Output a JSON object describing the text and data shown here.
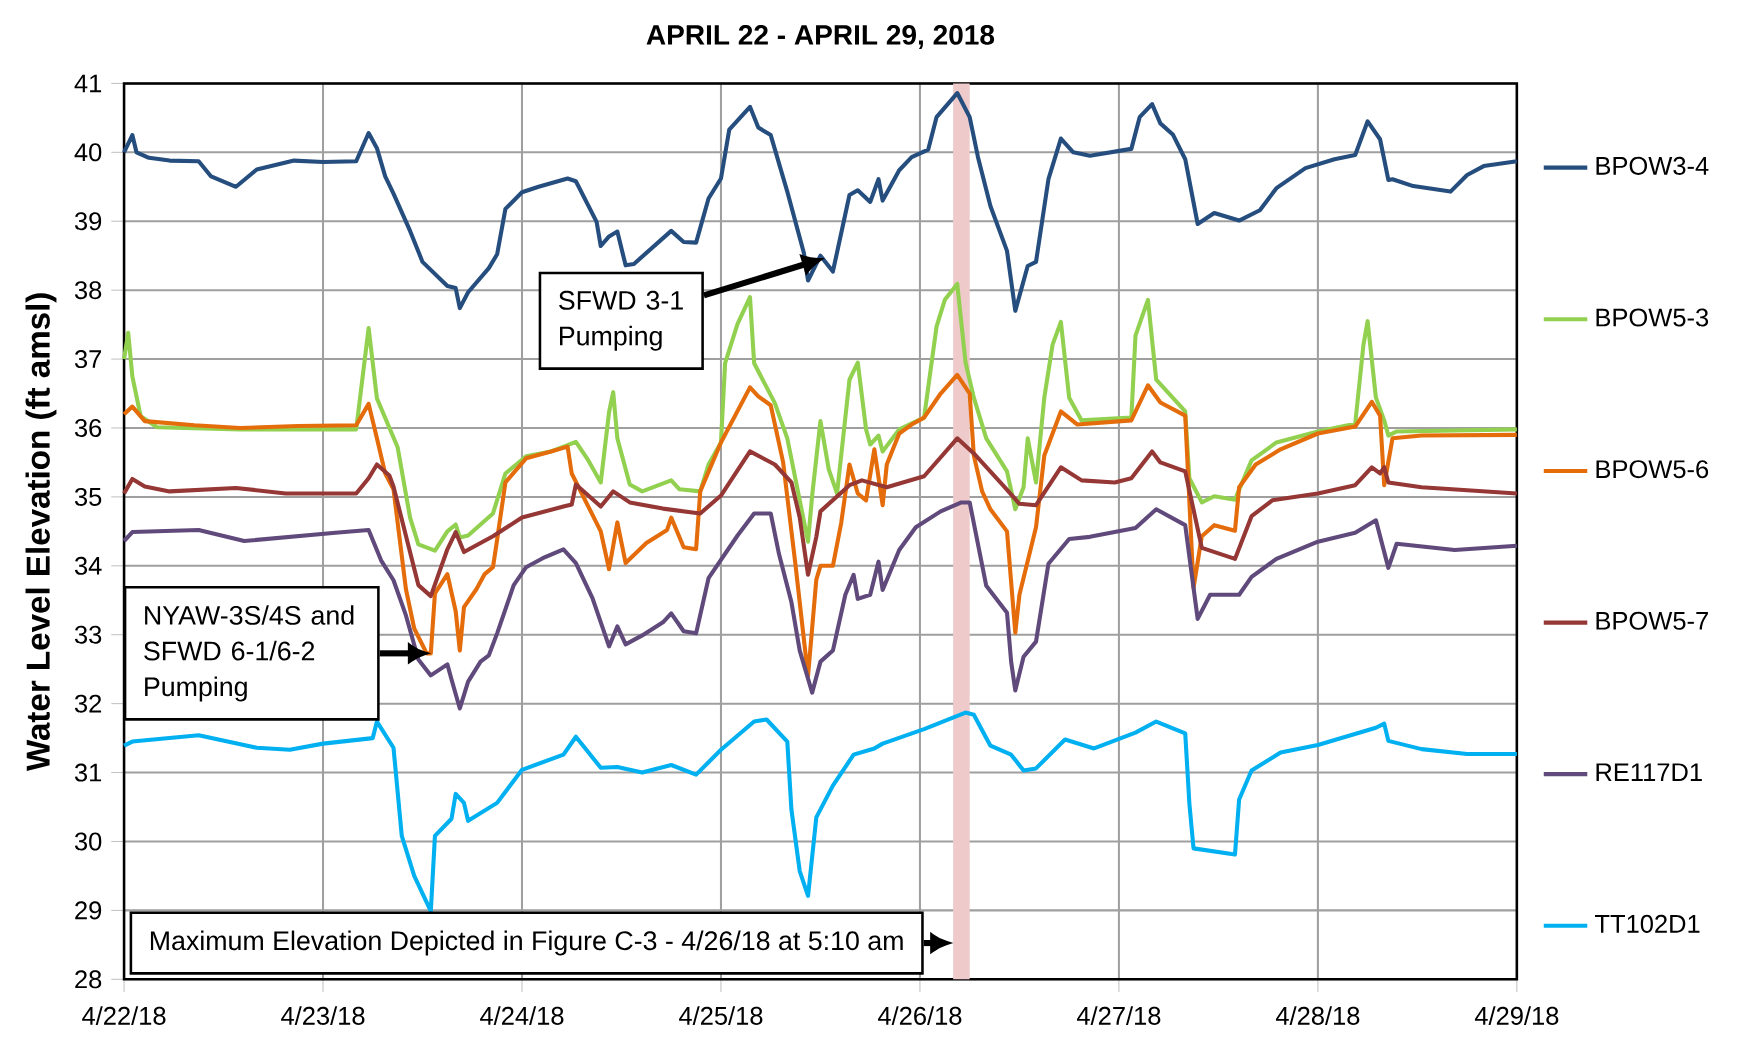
{
  "chart_data": {
    "type": "line",
    "title": "APRIL 22 - APRIL 29, 2018",
    "ylabel": "Water Level Elevation (ft amsl)",
    "xlim": [
      "2018-04-22",
      "2018-04-29"
    ],
    "xticks": [
      {
        "value": "2018-04-22",
        "label": "4/22/18"
      },
      {
        "value": "2018-04-23",
        "label": "4/23/18"
      },
      {
        "value": "2018-04-24",
        "label": "4/24/18"
      },
      {
        "value": "2018-04-25",
        "label": "4/25/18"
      },
      {
        "value": "2018-04-26",
        "label": "4/26/18"
      },
      {
        "value": "2018-04-27",
        "label": "4/27/18"
      },
      {
        "value": "2018-04-28",
        "label": "4/28/18"
      },
      {
        "value": "2018-04-29",
        "label": "4/29/18"
      }
    ],
    "ylim": [
      28,
      41
    ],
    "yticks": [
      28,
      29,
      30,
      31,
      32,
      33,
      34,
      35,
      36,
      37,
      38,
      39,
      40,
      41
    ],
    "grid": true,
    "legend": "right",
    "line_style": "solid",
    "bands": [
      {
        "axis": "x",
        "from": "2018-04-26T04:00",
        "to": "2018-04-26T06:00",
        "color": "#eecaca"
      }
    ],
    "annotations": [
      "SFWD 3-1 Pumping",
      {
        "text": "NYAW-3S/4S and SFWD 6-1/6-2 Pumping",
        "x": "2018-04-23T13:00",
        "y": 32.73
      },
      "Maximum Elevation Depicted in Figure C-3 - 4/26/18 at 5:10 am"
    ],
    "series": [
      {
        "name": "BPOW3-4",
        "color": "#254e7f",
        "x": [
          "2018-04-22T00:00",
          "2018-04-22T01:00",
          "2018-04-22T01:30",
          "2018-04-22T03:00",
          "2018-04-22T05:30",
          "2018-04-22T09:00",
          "2018-04-22T10:30",
          "2018-04-22T13:30",
          "2018-04-22T16:00",
          "2018-04-22T20:30",
          "2018-04-23T00:00",
          "2018-04-23T04:00",
          "2018-04-23T05:30",
          "2018-04-23T06:30",
          "2018-04-23T07:30",
          "2018-04-23T08:30",
          "2018-04-23T10:30",
          "2018-04-23T12:00",
          "2018-04-23T15:00",
          "2018-04-23T16:00",
          "2018-04-23T16:30",
          "2018-04-23T17:30",
          "2018-04-23T20:00",
          "2018-04-23T21:00",
          "2018-04-23T22:00",
          "2018-04-24T00:00",
          "2018-04-24T02:00",
          "2018-04-24T05:30",
          "2018-04-24T06:30",
          "2018-04-24T09:00",
          "2018-04-24T09:30",
          "2018-04-24T10:30",
          "2018-04-24T11:30",
          "2018-04-24T12:30",
          "2018-04-24T13:30",
          "2018-04-24T16:30",
          "2018-04-24T18:00",
          "2018-04-24T19:30",
          "2018-04-24T21:00",
          "2018-04-24T22:30",
          "2018-04-25T00:00",
          "2018-04-25T01:00",
          "2018-04-25T03:30",
          "2018-04-25T04:30",
          "2018-04-25T06:00",
          "2018-04-25T08:00",
          "2018-04-25T10:00",
          "2018-04-25T10:30",
          "2018-04-25T12:00",
          "2018-04-25T13:30",
          "2018-04-25T15:30",
          "2018-04-25T16:30",
          "2018-04-25T18:00",
          "2018-04-25T19:00",
          "2018-04-25T19:30",
          "2018-04-25T21:30",
          "2018-04-25T23:00",
          "2018-04-26T01:00",
          "2018-04-26T02:00",
          "2018-04-26T04:30",
          "2018-04-26T06:00",
          "2018-04-26T07:00",
          "2018-04-26T08:30",
          "2018-04-26T10:30",
          "2018-04-26T11:30",
          "2018-04-26T13:00",
          "2018-04-26T14:00",
          "2018-04-26T15:30",
          "2018-04-26T17:00",
          "2018-04-26T18:30",
          "2018-04-26T20:30",
          "2018-04-27T01:30",
          "2018-04-27T02:30",
          "2018-04-27T04:00",
          "2018-04-27T05:00",
          "2018-04-27T06:30",
          "2018-04-27T08:00",
          "2018-04-27T09:30",
          "2018-04-27T11:30",
          "2018-04-27T14:30",
          "2018-04-27T17:00",
          "2018-04-27T19:00",
          "2018-04-27T22:30",
          "2018-04-28T02:00",
          "2018-04-28T04:30",
          "2018-04-28T06:00",
          "2018-04-28T07:30",
          "2018-04-28T08:30",
          "2018-04-28T09:00",
          "2018-04-28T11:30",
          "2018-04-28T16:00",
          "2018-04-28T18:00",
          "2018-04-28T20:00",
          "2018-04-29T00:00"
        ],
        "values": [
          40.0,
          40.25,
          40.0,
          39.92,
          39.88,
          39.87,
          39.65,
          39.5,
          39.75,
          39.88,
          39.86,
          39.87,
          40.28,
          40.06,
          39.65,
          39.4,
          38.86,
          38.41,
          38.06,
          38.03,
          37.74,
          37.97,
          38.32,
          38.52,
          39.18,
          39.42,
          39.5,
          39.62,
          39.58,
          38.99,
          38.64,
          38.78,
          38.85,
          38.36,
          38.38,
          38.7,
          38.86,
          38.7,
          38.69,
          39.33,
          39.62,
          40.33,
          40.66,
          40.36,
          40.25,
          39.43,
          38.54,
          38.14,
          38.5,
          38.27,
          39.38,
          39.45,
          39.28,
          39.61,
          39.3,
          39.74,
          39.93,
          40.04,
          40.51,
          40.86,
          40.51,
          39.93,
          39.22,
          38.57,
          37.7,
          38.35,
          38.41,
          39.61,
          40.2,
          40.0,
          39.95,
          40.05,
          40.51,
          40.7,
          40.42,
          40.26,
          39.9,
          38.96,
          39.12,
          39.01,
          39.16,
          39.48,
          39.77,
          39.9,
          39.96,
          40.45,
          40.19,
          39.6,
          39.61,
          39.51,
          39.43,
          39.67,
          39.8,
          39.87
        ]
      },
      {
        "name": "BPOW5-3",
        "color": "#92d050",
        "x": [
          "2018-04-22T00:00",
          "2018-04-22T00:30",
          "2018-04-22T01:00",
          "2018-04-22T02:00",
          "2018-04-22T04:00",
          "2018-04-22T14:00",
          "2018-04-23T04:00",
          "2018-04-23T05:30",
          "2018-04-23T06:30",
          "2018-04-23T09:00",
          "2018-04-23T10:30",
          "2018-04-23T11:30",
          "2018-04-23T13:30",
          "2018-04-23T15:00",
          "2018-04-23T16:00",
          "2018-04-23T16:30",
          "2018-04-23T17:30",
          "2018-04-23T20:30",
          "2018-04-23T22:00",
          "2018-04-24T00:30",
          "2018-04-24T03:30",
          "2018-04-24T05:30",
          "2018-04-24T06:30",
          "2018-04-24T08:00",
          "2018-04-24T09:30",
          "2018-04-24T10:30",
          "2018-04-24T11:00",
          "2018-04-24T11:30",
          "2018-04-24T13:00",
          "2018-04-24T14:30",
          "2018-04-24T18:00",
          "2018-04-24T19:00",
          "2018-04-24T21:30",
          "2018-04-24T22:30",
          "2018-04-25T00:00",
          "2018-04-25T00:30",
          "2018-04-25T02:00",
          "2018-04-25T03:30",
          "2018-04-25T04:00",
          "2018-04-25T06:30",
          "2018-04-25T08:00",
          "2018-04-25T09:30",
          "2018-04-25T10:30",
          "2018-04-25T11:00",
          "2018-04-25T12:00",
          "2018-04-25T13:00",
          "2018-04-25T14:00",
          "2018-04-25T15:30",
          "2018-04-25T16:30",
          "2018-04-25T17:30",
          "2018-04-25T18:00",
          "2018-04-25T19:00",
          "2018-04-25T19:30",
          "2018-04-25T21:30",
          "2018-04-26T00:30",
          "2018-04-26T02:00",
          "2018-04-26T03:00",
          "2018-04-26T04:30",
          "2018-04-26T05:30",
          "2018-04-26T06:30",
          "2018-04-26T08:00",
          "2018-04-26T10:30",
          "2018-04-26T11:30",
          "2018-04-26T12:30",
          "2018-04-26T13:00",
          "2018-04-26T14:00",
          "2018-04-26T15:00",
          "2018-04-26T16:00",
          "2018-04-26T17:00",
          "2018-04-26T18:00",
          "2018-04-26T19:30",
          "2018-04-27T01:30",
          "2018-04-27T02:00",
          "2018-04-27T03:30",
          "2018-04-27T04:30",
          "2018-04-27T08:00",
          "2018-04-27T08:30",
          "2018-04-27T10:00",
          "2018-04-27T11:30",
          "2018-04-27T14:00",
          "2018-04-27T16:00",
          "2018-04-27T19:00",
          "2018-04-28T00:00",
          "2018-04-28T04:30",
          "2018-04-28T05:30",
          "2018-04-28T06:00",
          "2018-04-28T07:00",
          "2018-04-28T08:00",
          "2018-04-28T08:30",
          "2018-04-28T09:30",
          "2018-04-29T00:00"
        ],
        "values": [
          37.0,
          37.38,
          36.75,
          36.17,
          36.01,
          35.98,
          35.98,
          37.45,
          36.43,
          35.72,
          34.7,
          34.31,
          34.22,
          34.5,
          34.6,
          34.41,
          34.44,
          34.76,
          35.34,
          35.59,
          35.66,
          35.75,
          35.8,
          35.53,
          35.21,
          36.23,
          36.52,
          35.85,
          35.18,
          35.08,
          35.24,
          35.11,
          35.08,
          35.47,
          35.79,
          36.94,
          37.51,
          37.9,
          36.94,
          36.36,
          35.85,
          34.95,
          34.35,
          35.02,
          36.1,
          35.4,
          35.05,
          36.7,
          36.95,
          35.98,
          35.76,
          35.89,
          35.66,
          35.98,
          36.15,
          37.47,
          37.86,
          38.09,
          36.95,
          36.44,
          35.85,
          35.37,
          34.82,
          35.14,
          35.85,
          35.21,
          36.44,
          37.21,
          37.54,
          36.44,
          36.11,
          36.15,
          37.34,
          37.86,
          36.7,
          36.24,
          35.27,
          34.92,
          35.01,
          34.96,
          35.53,
          35.79,
          35.95,
          36.06,
          37.21,
          37.55,
          36.44,
          36.11,
          35.89,
          35.95,
          35.98
        ]
      },
      {
        "name": "BPOW5-6",
        "color": "#e46c0a",
        "x": [
          "2018-04-22T00:00",
          "2018-04-22T01:00",
          "2018-04-22T02:30",
          "2018-04-22T08:30",
          "2018-04-22T14:00",
          "2018-04-22T21:00",
          "2018-04-23T04:00",
          "2018-04-23T05:30",
          "2018-04-23T06:30",
          "2018-04-23T07:30",
          "2018-04-23T08:30",
          "2018-04-23T10:00",
          "2018-04-23T11:00",
          "2018-04-23T12:30",
          "2018-04-23T13:00",
          "2018-04-23T13:30",
          "2018-04-23T15:00",
          "2018-04-23T16:00",
          "2018-04-23T16:30",
          "2018-04-23T17:00",
          "2018-04-23T18:30",
          "2018-04-23T19:30",
          "2018-04-23T20:30",
          "2018-04-23T21:00",
          "2018-04-23T22:00",
          "2018-04-24T00:30",
          "2018-04-24T03:30",
          "2018-04-24T05:30",
          "2018-04-24T06:00",
          "2018-04-24T08:00",
          "2018-04-24T09:30",
          "2018-04-24T10:30",
          "2018-04-24T11:30",
          "2018-04-24T12:30",
          "2018-04-24T15:00",
          "2018-04-24T17:30",
          "2018-04-24T18:00",
          "2018-04-24T19:30",
          "2018-04-24T21:00",
          "2018-04-24T21:30",
          "2018-04-25T00:00",
          "2018-04-25T03:30",
          "2018-04-25T04:30",
          "2018-04-25T06:00",
          "2018-04-25T07:30",
          "2018-04-25T09:00",
          "2018-04-25T10:30",
          "2018-04-25T11:30",
          "2018-04-25T12:00",
          "2018-04-25T13:30",
          "2018-04-25T14:30",
          "2018-04-25T15:30",
          "2018-04-25T16:30",
          "2018-04-25T17:30",
          "2018-04-25T18:30",
          "2018-04-25T19:30",
          "2018-04-25T20:00",
          "2018-04-25T21:30",
          "2018-04-25T23:00",
          "2018-04-26T00:30",
          "2018-04-26T02:30",
          "2018-04-26T04:30",
          "2018-04-26T06:00",
          "2018-04-26T06:30",
          "2018-04-26T07:30",
          "2018-04-26T08:30",
          "2018-04-26T10:30",
          "2018-04-26T11:30",
          "2018-04-26T12:00",
          "2018-04-26T14:00",
          "2018-04-26T15:00",
          "2018-04-26T17:00",
          "2018-04-26T19:00",
          "2018-04-27T01:30",
          "2018-04-27T03:30",
          "2018-04-27T05:00",
          "2018-04-27T08:00",
          "2018-04-27T09:00",
          "2018-04-27T10:00",
          "2018-04-27T11:30",
          "2018-04-27T14:00",
          "2018-04-27T14:30",
          "2018-04-27T16:30",
          "2018-04-27T19:30",
          "2018-04-28T00:00",
          "2018-04-28T04:30",
          "2018-04-28T06:30",
          "2018-04-28T07:30",
          "2018-04-28T08:00",
          "2018-04-28T09:00",
          "2018-04-28T12:30",
          "2018-04-29T00:00"
        ],
        "values": [
          36.2,
          36.31,
          36.1,
          36.04,
          36.0,
          36.03,
          36.04,
          36.35,
          35.85,
          35.34,
          35.11,
          33.66,
          33.09,
          32.73,
          32.73,
          33.6,
          33.88,
          33.34,
          32.77,
          33.4,
          33.66,
          33.88,
          33.98,
          34.38,
          35.21,
          35.56,
          35.66,
          35.73,
          35.34,
          34.86,
          34.5,
          33.95,
          34.63,
          34.04,
          34.33,
          34.52,
          34.7,
          34.27,
          34.24,
          35.08,
          35.79,
          36.59,
          36.46,
          36.33,
          35.5,
          34.0,
          32.4,
          33.8,
          34.0,
          34.0,
          34.62,
          35.47,
          35.05,
          34.95,
          35.69,
          34.88,
          35.47,
          35.92,
          36.05,
          36.15,
          36.5,
          36.77,
          36.5,
          35.6,
          35.08,
          34.82,
          34.5,
          33.03,
          33.58,
          34.56,
          35.6,
          36.24,
          36.05,
          36.11,
          36.62,
          36.37,
          36.18,
          33.68,
          34.43,
          34.59,
          34.51,
          35.14,
          35.47,
          35.69,
          35.92,
          36.02,
          36.38,
          36.18,
          35.17,
          35.85,
          35.89,
          35.9
        ]
      },
      {
        "name": "BPOW5-7",
        "color": "#953735",
        "x": [
          "2018-04-22T00:00",
          "2018-04-22T01:00",
          "2018-04-22T02:30",
          "2018-04-22T05:30",
          "2018-04-22T13:30",
          "2018-04-22T19:30",
          "2018-04-23T04:00",
          "2018-04-23T05:30",
          "2018-04-23T06:30",
          "2018-04-23T08:00",
          "2018-04-23T08:30",
          "2018-04-23T11:30",
          "2018-04-23T13:00",
          "2018-04-23T15:00",
          "2018-04-23T16:00",
          "2018-04-23T17:00",
          "2018-04-23T20:30",
          "2018-04-24T00:00",
          "2018-04-24T05:00",
          "2018-04-24T06:00",
          "2018-04-24T06:30",
          "2018-04-24T08:00",
          "2018-04-24T09:30",
          "2018-04-24T11:00",
          "2018-04-24T13:00",
          "2018-04-24T17:00",
          "2018-04-24T21:30",
          "2018-04-25T00:00",
          "2018-04-25T03:30",
          "2018-04-25T06:30",
          "2018-04-25T08:30",
          "2018-04-25T09:30",
          "2018-04-25T10:30",
          "2018-04-25T11:30",
          "2018-04-25T12:00",
          "2018-04-25T15:30",
          "2018-04-25T17:00",
          "2018-04-25T20:00",
          "2018-04-26T00:30",
          "2018-04-26T04:30",
          "2018-04-26T06:30",
          "2018-04-26T10:00",
          "2018-04-26T12:00",
          "2018-04-26T14:00",
          "2018-04-26T17:00",
          "2018-04-26T19:30",
          "2018-04-26T23:30",
          "2018-04-27T01:30",
          "2018-04-27T04:00",
          "2018-04-27T05:00",
          "2018-04-27T08:00",
          "2018-04-27T10:00",
          "2018-04-27T14:00",
          "2018-04-27T16:00",
          "2018-04-27T18:30",
          "2018-04-28T00:00",
          "2018-04-28T04:30",
          "2018-04-28T06:30",
          "2018-04-28T07:30",
          "2018-04-28T08:00",
          "2018-04-28T08:30",
          "2018-04-28T12:30",
          "2018-04-29T00:00"
        ],
        "values": [
          35.05,
          35.26,
          35.15,
          35.08,
          35.13,
          35.05,
          35.05,
          35.27,
          35.47,
          35.31,
          35.15,
          33.72,
          33.56,
          34.24,
          34.49,
          34.2,
          34.43,
          34.7,
          34.86,
          34.89,
          35.18,
          35.02,
          34.86,
          35.08,
          34.92,
          34.83,
          34.76,
          35.02,
          35.66,
          35.47,
          35.21,
          34.7,
          33.87,
          34.42,
          34.79,
          35.17,
          35.24,
          35.14,
          35.3,
          35.85,
          35.63,
          35.17,
          34.9,
          34.88,
          35.43,
          35.24,
          35.21,
          35.27,
          35.66,
          35.5,
          35.37,
          34.26,
          34.1,
          34.72,
          34.95,
          35.05,
          35.17,
          35.43,
          35.34,
          35.43,
          35.21,
          35.14,
          35.05
        ]
      },
      {
        "name": "RE117D1",
        "color": "#604a7b",
        "x": [
          "2018-04-22T00:00",
          "2018-04-22T01:00",
          "2018-04-22T09:00",
          "2018-04-22T14:30",
          "2018-04-23T01:30",
          "2018-04-23T05:30",
          "2018-04-23T07:00",
          "2018-04-23T08:30",
          "2018-04-23T10:00",
          "2018-04-23T11:30",
          "2018-04-23T13:00",
          "2018-04-23T15:00",
          "2018-04-23T15:30",
          "2018-04-23T16:30",
          "2018-04-23T17:30",
          "2018-04-23T19:00",
          "2018-04-23T20:00",
          "2018-04-23T21:00",
          "2018-04-23T23:00",
          "2018-04-24T00:30",
          "2018-04-24T02:30",
          "2018-04-24T05:00",
          "2018-04-24T06:30",
          "2018-04-24T08:30",
          "2018-04-24T09:30",
          "2018-04-24T10:30",
          "2018-04-24T11:30",
          "2018-04-24T12:30",
          "2018-04-24T14:30",
          "2018-04-24T17:00",
          "2018-04-24T18:00",
          "2018-04-24T19:30",
          "2018-04-24T21:00",
          "2018-04-24T22:30",
          "2018-04-25T02:00",
          "2018-04-25T04:00",
          "2018-04-25T06:00",
          "2018-04-25T07:00",
          "2018-04-25T08:30",
          "2018-04-25T09:30",
          "2018-04-25T11:00",
          "2018-04-25T12:00",
          "2018-04-25T13:30",
          "2018-04-25T15:00",
          "2018-04-25T16:00",
          "2018-04-25T16:30",
          "2018-04-25T18:00",
          "2018-04-25T19:00",
          "2018-04-25T19:30",
          "2018-04-25T21:30",
          "2018-04-25T23:30",
          "2018-04-26T02:30",
          "2018-04-26T05:00",
          "2018-04-26T06:00",
          "2018-04-26T08:00",
          "2018-04-26T10:30",
          "2018-04-26T11:00",
          "2018-04-26T11:30",
          "2018-04-26T12:30",
          "2018-04-26T14:00",
          "2018-04-26T15:30",
          "2018-04-26T18:00",
          "2018-04-26T20:30",
          "2018-04-27T02:00",
          "2018-04-27T04:30",
          "2018-04-27T08:00",
          "2018-04-27T09:30",
          "2018-04-27T11:00",
          "2018-04-27T14:30",
          "2018-04-27T16:00",
          "2018-04-27T19:00",
          "2018-04-28T00:00",
          "2018-04-28T04:30",
          "2018-04-28T07:00",
          "2018-04-28T08:30",
          "2018-04-28T09:30",
          "2018-04-28T16:30",
          "2018-04-29T00:00"
        ],
        "values": [
          34.36,
          34.49,
          34.52,
          34.36,
          34.48,
          34.52,
          34.08,
          33.79,
          33.28,
          32.64,
          32.41,
          32.57,
          32.35,
          31.93,
          32.32,
          32.61,
          32.7,
          33.02,
          33.72,
          33.98,
          34.11,
          34.24,
          34.04,
          33.53,
          33.18,
          32.83,
          33.12,
          32.86,
          32.99,
          33.18,
          33.31,
          33.05,
          33.02,
          33.82,
          34.44,
          34.76,
          34.76,
          34.17,
          33.47,
          32.77,
          32.16,
          32.61,
          32.77,
          33.58,
          33.87,
          33.52,
          33.58,
          34.06,
          33.65,
          34.23,
          34.56,
          34.79,
          34.92,
          34.92,
          33.71,
          33.32,
          32.61,
          32.19,
          32.68,
          32.9,
          34.03,
          34.39,
          34.42,
          34.55,
          34.82,
          34.59,
          33.23,
          33.58,
          33.58,
          33.84,
          34.1,
          34.35,
          34.48,
          34.66,
          33.97,
          34.32,
          34.23,
          34.29
        ]
      },
      {
        "name": "TT102D1",
        "color": "#00b0f0",
        "x": [
          "2018-04-22T00:00",
          "2018-04-22T01:00",
          "2018-04-22T09:00",
          "2018-04-22T16:00",
          "2018-04-22T20:00",
          "2018-04-23T00:00",
          "2018-04-23T06:00",
          "2018-04-23T06:30",
          "2018-04-23T08:30",
          "2018-04-23T09:30",
          "2018-04-23T11:00",
          "2018-04-23T13:00",
          "2018-04-23T13:30",
          "2018-04-23T15:30",
          "2018-04-23T16:00",
          "2018-04-23T17:00",
          "2018-04-23T17:30",
          "2018-04-23T21:00",
          "2018-04-24T00:00",
          "2018-04-24T05:00",
          "2018-04-24T06:30",
          "2018-04-24T09:30",
          "2018-04-24T11:30",
          "2018-04-24T14:30",
          "2018-04-24T18:00",
          "2018-04-24T21:00",
          "2018-04-25T00:00",
          "2018-04-25T04:00",
          "2018-04-25T05:30",
          "2018-04-25T08:00",
          "2018-04-25T08:30",
          "2018-04-25T09:30",
          "2018-04-25T10:30",
          "2018-04-25T11:30",
          "2018-04-25T13:30",
          "2018-04-25T16:00",
          "2018-04-25T18:30",
          "2018-04-25T19:30",
          "2018-04-26T00:30",
          "2018-04-26T05:30",
          "2018-04-26T06:30",
          "2018-04-26T08:30",
          "2018-04-26T11:00",
          "2018-04-26T12:30",
          "2018-04-26T14:00",
          "2018-04-26T17:30",
          "2018-04-26T21:00",
          "2018-04-27T02:00",
          "2018-04-27T04:30",
          "2018-04-27T08:00",
          "2018-04-27T08:30",
          "2018-04-27T09:00",
          "2018-04-27T14:00",
          "2018-04-27T14:30",
          "2018-04-27T16:00",
          "2018-04-27T19:30",
          "2018-04-28T00:00",
          "2018-04-28T07:00",
          "2018-04-28T08:00",
          "2018-04-28T08:30",
          "2018-04-28T12:30",
          "2018-04-28T18:00",
          "2018-04-29T00:00"
        ],
        "values": [
          31.39,
          31.45,
          31.54,
          31.36,
          31.33,
          31.42,
          31.5,
          31.74,
          31.36,
          30.08,
          29.5,
          28.99,
          30.08,
          30.33,
          30.69,
          30.56,
          30.3,
          30.56,
          31.04,
          31.26,
          31.52,
          31.07,
          31.08,
          31.0,
          31.11,
          30.97,
          31.33,
          31.74,
          31.77,
          31.45,
          30.46,
          29.57,
          29.21,
          30.35,
          30.81,
          31.26,
          31.35,
          31.42,
          31.63,
          31.87,
          31.84,
          31.39,
          31.26,
          31.03,
          31.06,
          31.48,
          31.35,
          31.58,
          31.74,
          31.57,
          30.55,
          29.9,
          29.81,
          30.61,
          31.03,
          31.29,
          31.4,
          31.65,
          31.71,
          31.46,
          31.34,
          31.27,
          31.27
        ]
      }
    ]
  }
}
